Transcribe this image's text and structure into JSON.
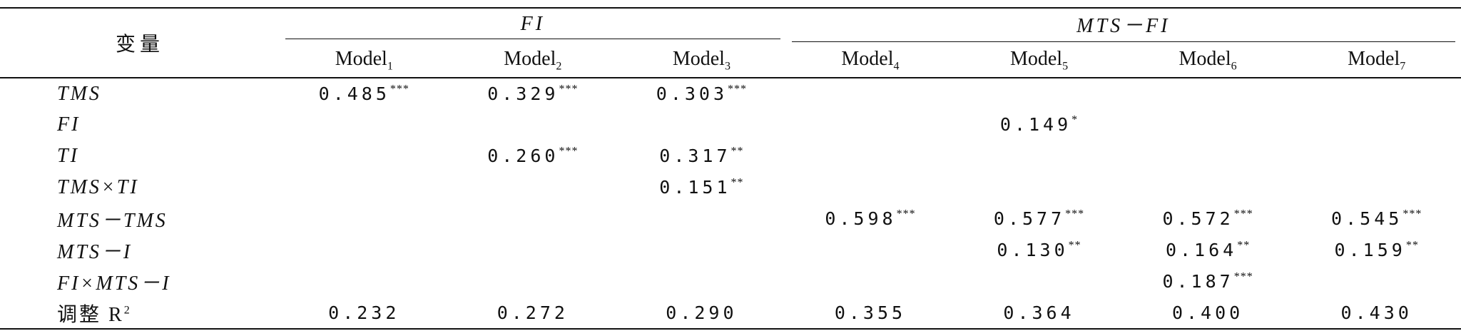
{
  "header": {
    "variable": "变量",
    "groups": [
      {
        "label": "FI",
        "span": 3
      },
      {
        "label": "MTS－FI",
        "span": 4
      }
    ],
    "models": [
      {
        "name": "Model",
        "sub": "1"
      },
      {
        "name": "Model",
        "sub": "2"
      },
      {
        "name": "Model",
        "sub": "3"
      },
      {
        "name": "Model",
        "sub": "4"
      },
      {
        "name": "Model",
        "sub": "5"
      },
      {
        "name": "Model",
        "sub": "6"
      },
      {
        "name": "Model",
        "sub": "7"
      }
    ]
  },
  "rows": [
    {
      "label": "TMS",
      "cells": [
        {
          "value": "0.485",
          "stars": "***"
        },
        {
          "value": "0.329",
          "stars": "***"
        },
        {
          "value": "0.303",
          "stars": "***"
        },
        null,
        null,
        null,
        null
      ]
    },
    {
      "label": "FI",
      "cells": [
        null,
        null,
        null,
        null,
        {
          "value": "0.149",
          "stars": "*"
        },
        null,
        null
      ]
    },
    {
      "label": "TI",
      "cells": [
        null,
        {
          "value": "0.260",
          "stars": "***"
        },
        {
          "value": "0.317",
          "stars": "**"
        },
        null,
        null,
        null,
        null
      ]
    },
    {
      "label": "TMS×TI",
      "cells": [
        null,
        null,
        {
          "value": "0.151",
          "stars": "**"
        },
        null,
        null,
        null,
        null
      ]
    },
    {
      "label": "MTS－TMS",
      "cells": [
        null,
        null,
        null,
        {
          "value": "0.598",
          "stars": "***"
        },
        {
          "value": "0.577",
          "stars": "***"
        },
        {
          "value": "0.572",
          "stars": "***"
        },
        {
          "value": "0.545",
          "stars": "***"
        }
      ]
    },
    {
      "label": "MTS－I",
      "cells": [
        null,
        null,
        null,
        null,
        {
          "value": "0.130",
          "stars": "**"
        },
        {
          "value": "0.164",
          "stars": "**"
        },
        {
          "value": "0.159",
          "stars": "**"
        }
      ]
    },
    {
      "label": "FI×MTS－I",
      "cells": [
        null,
        null,
        null,
        null,
        null,
        {
          "value": "0.187",
          "stars": "***"
        },
        null
      ]
    },
    {
      "label": "调整 R",
      "label_sup": "2",
      "plain": true,
      "cells": [
        {
          "value": "0.232"
        },
        {
          "value": "0.272"
        },
        {
          "value": "0.290"
        },
        {
          "value": "0.355"
        },
        {
          "value": "0.364"
        },
        {
          "value": "0.400"
        },
        {
          "value": "0.430"
        }
      ]
    }
  ]
}
